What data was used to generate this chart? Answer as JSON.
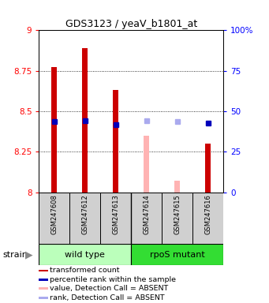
{
  "title": "GDS3123 / yeaV_b1801_at",
  "samples": [
    "GSM247608",
    "GSM247612",
    "GSM247613",
    "GSM247614",
    "GSM247615",
    "GSM247616"
  ],
  "ylim_left": [
    8.0,
    9.0
  ],
  "ylim_right": [
    0,
    100
  ],
  "yticks_left": [
    8.0,
    8.25,
    8.5,
    8.75,
    9.0
  ],
  "yticks_right": [
    0,
    25,
    50,
    75,
    100
  ],
  "ytick_labels_left": [
    "8",
    "8.25",
    "8.5",
    "8.75",
    "9"
  ],
  "ytick_labels_right": [
    "0",
    "25",
    "50",
    "75",
    "100%"
  ],
  "bar_values": [
    8.775,
    8.89,
    8.63,
    null,
    null,
    8.3
  ],
  "bar_absent_values": [
    null,
    null,
    null,
    8.35,
    8.07,
    null
  ],
  "rank_values": [
    8.435,
    8.44,
    8.42,
    null,
    null,
    8.43
  ],
  "rank_absent_values": [
    null,
    null,
    null,
    8.44,
    8.435,
    null
  ],
  "bar_color": "#cc0000",
  "bar_absent_color": "#ffb3b3",
  "rank_color": "#0000bb",
  "rank_absent_color": "#aaaaee",
  "bar_bottom": 8.0,
  "wild_type_color": "#bbffbb",
  "rpoS_color": "#33dd33",
  "group_labels": [
    "wild type",
    "rpoS mutant"
  ],
  "legend_items": [
    {
      "label": "transformed count",
      "color": "#cc0000"
    },
    {
      "label": "percentile rank within the sample",
      "color": "#0000bb"
    },
    {
      "label": "value, Detection Call = ABSENT",
      "color": "#ffb3b3"
    },
    {
      "label": "rank, Detection Call = ABSENT",
      "color": "#aaaaee"
    }
  ],
  "bar_width": 0.18,
  "rank_marker_size": 5
}
